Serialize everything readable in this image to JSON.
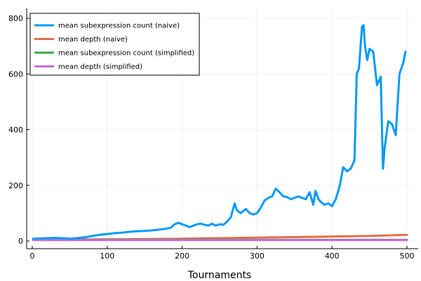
{
  "chart_data": {
    "type": "line",
    "title": "",
    "xlabel": "Tournaments",
    "ylabel": "",
    "xlim": [
      0,
      500
    ],
    "ylim": [
      0,
      800
    ],
    "xticks": [
      0,
      100,
      200,
      300,
      400,
      500
    ],
    "yticks": [
      0,
      200,
      400,
      600,
      800
    ],
    "grid": true,
    "legend_position": "top-left",
    "series": [
      {
        "name": "mean subexpression count (naive)",
        "color": "#009AF9",
        "x": [
          1,
          10,
          20,
          30,
          40,
          50,
          60,
          70,
          80,
          90,
          100,
          110,
          120,
          130,
          140,
          150,
          160,
          170,
          180,
          185,
          190,
          195,
          200,
          205,
          210,
          215,
          220,
          225,
          230,
          235,
          240,
          245,
          250,
          255,
          260,
          265,
          270,
          273,
          278,
          285,
          290,
          295,
          300,
          305,
          310,
          315,
          320,
          325,
          330,
          335,
          340,
          345,
          350,
          355,
          360,
          365,
          370,
          375,
          378,
          382,
          385,
          390,
          395,
          400,
          405,
          410,
          415,
          420,
          425,
          430,
          433,
          436,
          440,
          442,
          444,
          447,
          450,
          455,
          460,
          465,
          468,
          470,
          475,
          480,
          485,
          490,
          495,
          498
        ],
        "values": [
          8,
          9,
          10,
          11,
          10,
          8,
          10,
          13,
          18,
          22,
          25,
          28,
          30,
          33,
          35,
          36,
          38,
          41,
          45,
          48,
          60,
          65,
          60,
          55,
          50,
          55,
          60,
          62,
          58,
          55,
          62,
          55,
          60,
          58,
          70,
          85,
          135,
          110,
          100,
          115,
          100,
          95,
          100,
          120,
          145,
          155,
          160,
          188,
          175,
          160,
          158,
          150,
          155,
          160,
          155,
          150,
          175,
          130,
          180,
          150,
          140,
          130,
          135,
          125,
          150,
          195,
          265,
          250,
          260,
          290,
          600,
          620,
          770,
          775,
          700,
          650,
          690,
          680,
          560,
          590,
          260,
          330,
          430,
          420,
          380,
          600,
          640,
          680
        ]
      },
      {
        "name": "mean depth (naive)",
        "color": "#E26F46",
        "x": [
          1,
          50,
          100,
          150,
          200,
          250,
          300,
          350,
          400,
          450,
          500
        ],
        "values": [
          4,
          5,
          6,
          7,
          8,
          10,
          12,
          14,
          16,
          18,
          22
        ]
      },
      {
        "name": "mean subexpression count (simplified)",
        "color": "#3DA44D",
        "x": [
          1,
          50,
          100,
          150,
          200,
          250,
          300,
          350,
          400,
          450,
          500
        ],
        "values": [
          5,
          4,
          4,
          4,
          4,
          4,
          4,
          4,
          4,
          4,
          4
        ]
      },
      {
        "name": "mean depth (simplified)",
        "color": "#C271D2",
        "x": [
          1,
          50,
          100,
          150,
          200,
          250,
          300,
          350,
          400,
          450,
          500
        ],
        "values": [
          3,
          3,
          3,
          3,
          3,
          3,
          3,
          3,
          3,
          3,
          3
        ]
      }
    ]
  }
}
